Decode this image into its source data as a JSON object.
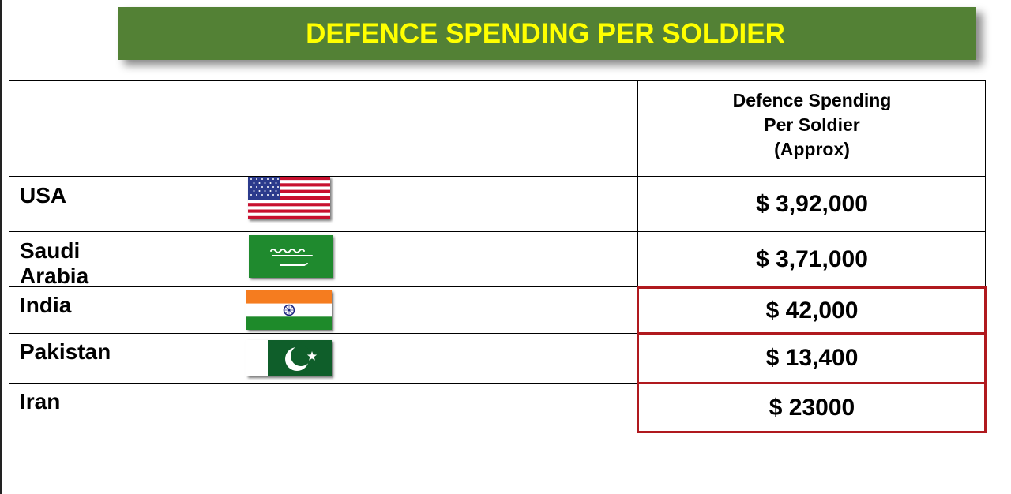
{
  "title": "DEFENCE SPENDING PER SOLDIER",
  "table": {
    "header": {
      "line1": "Defence Spending",
      "line2": "Per Soldier",
      "line3": "(Approx)"
    },
    "rows": [
      {
        "country": "USA",
        "value": "$ 3,92,000",
        "flag": "usa-flag"
      },
      {
        "country": "Saudi Arabia",
        "value": "$ 3,71,000",
        "flag": "saudi-arabia-flag"
      },
      {
        "country": "India",
        "value": "$ 42,000",
        "flag": "india-flag"
      },
      {
        "country": "Pakistan",
        "value": "$ 13,400",
        "flag": "pakistan-flag"
      },
      {
        "country": "Iran",
        "value": "$ 23000",
        "flag": ""
      }
    ]
  },
  "colors": {
    "banner": "#538135",
    "title_text": "#ffff00",
    "highlight_border": "#b0191e"
  }
}
